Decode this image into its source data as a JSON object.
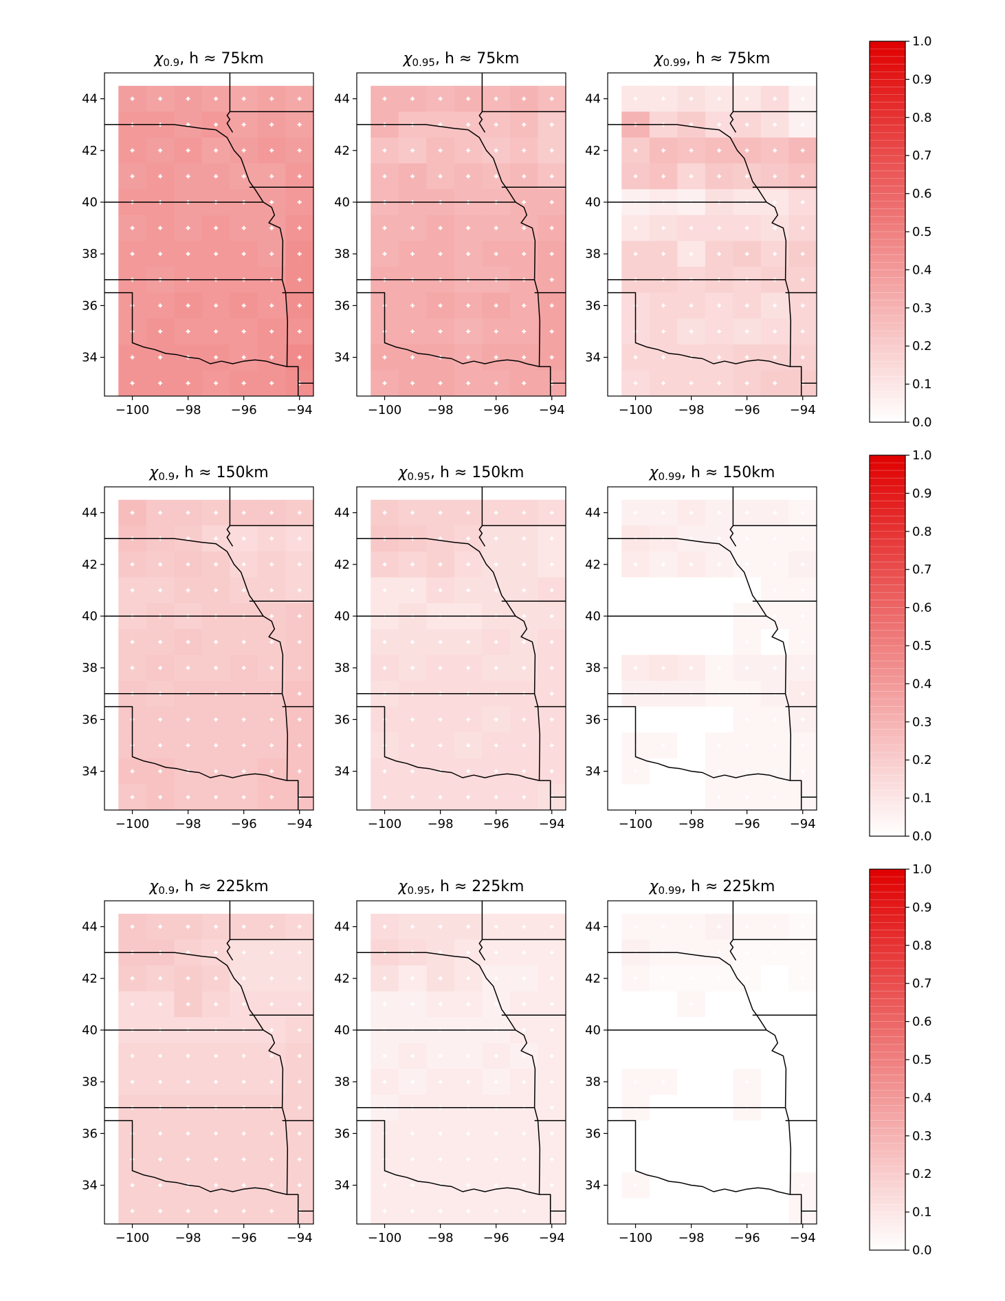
{
  "chart_data": {
    "type": "heatmap",
    "grid": {
      "lon_centers": [
        -100,
        -99,
        -98,
        -97,
        -96,
        -95,
        -94
      ],
      "lat_centers": [
        44,
        43,
        42,
        41,
        40,
        39,
        38,
        37,
        36,
        35,
        34,
        33
      ],
      "cell_size_deg": 1
    },
    "colorbar": {
      "cmap": "white-to-red",
      "color_min": "#ffffff",
      "color_max": "#e00000",
      "vmin": 0,
      "vmax": 1,
      "ticks": [
        "0.0",
        "0.1",
        "0.2",
        "0.3",
        "0.4",
        "0.5",
        "0.6",
        "0.7",
        "0.8",
        "0.9",
        "1.0"
      ]
    },
    "xlim": [
      -101,
      -93.5
    ],
    "ylim": [
      32.5,
      45
    ],
    "xticks": [
      "−100",
      "−98",
      "−96",
      "−94"
    ],
    "yticks": [
      "34",
      "36",
      "38",
      "40",
      "42",
      "44"
    ],
    "panels": [
      {
        "chi": "0.9",
        "h": "75km",
        "values": [
          [
            0.38,
            0.36,
            0.38,
            0.36,
            0.34,
            0.36,
            0.34
          ],
          [
            0.4,
            0.4,
            0.38,
            0.4,
            0.36,
            0.38,
            0.36
          ],
          [
            0.4,
            0.38,
            0.4,
            0.36,
            0.38,
            0.4,
            0.38
          ],
          [
            0.38,
            0.4,
            0.38,
            0.38,
            0.36,
            0.36,
            0.4
          ],
          [
            0.4,
            0.4,
            0.38,
            0.38,
            0.38,
            0.38,
            0.4
          ],
          [
            0.38,
            0.4,
            0.38,
            0.4,
            0.38,
            0.38,
            0.42
          ],
          [
            0.4,
            0.4,
            0.4,
            0.4,
            0.4,
            0.38,
            0.44
          ],
          [
            0.4,
            0.38,
            0.4,
            0.4,
            0.4,
            0.4,
            0.44
          ],
          [
            0.4,
            0.4,
            0.42,
            0.4,
            0.42,
            0.4,
            0.44
          ],
          [
            0.4,
            0.42,
            0.4,
            0.4,
            0.4,
            0.42,
            0.42
          ],
          [
            0.42,
            0.42,
            0.42,
            0.42,
            0.4,
            0.42,
            0.46
          ],
          [
            0.42,
            0.42,
            0.42,
            0.4,
            0.42,
            0.42,
            0.44
          ]
        ]
      },
      {
        "chi": "0.95",
        "h": "75km",
        "values": [
          [
            0.3,
            0.3,
            0.28,
            0.3,
            0.28,
            0.3,
            0.26
          ],
          [
            0.3,
            0.24,
            0.24,
            0.24,
            0.24,
            0.26,
            0.2
          ],
          [
            0.24,
            0.22,
            0.26,
            0.24,
            0.22,
            0.24,
            0.2
          ],
          [
            0.28,
            0.3,
            0.26,
            0.28,
            0.26,
            0.28,
            0.24
          ],
          [
            0.28,
            0.3,
            0.3,
            0.28,
            0.28,
            0.3,
            0.3
          ],
          [
            0.3,
            0.3,
            0.32,
            0.3,
            0.3,
            0.3,
            0.32
          ],
          [
            0.3,
            0.32,
            0.32,
            0.3,
            0.32,
            0.32,
            0.34
          ],
          [
            0.32,
            0.32,
            0.32,
            0.3,
            0.3,
            0.32,
            0.34
          ],
          [
            0.32,
            0.32,
            0.34,
            0.32,
            0.34,
            0.32,
            0.36
          ],
          [
            0.32,
            0.32,
            0.32,
            0.3,
            0.32,
            0.32,
            0.36
          ],
          [
            0.34,
            0.34,
            0.34,
            0.32,
            0.34,
            0.34,
            0.36
          ],
          [
            0.32,
            0.34,
            0.34,
            0.32,
            0.32,
            0.34,
            0.34
          ]
        ]
      },
      {
        "chi": "0.99",
        "h": "75km",
        "values": [
          [
            0.1,
            0.1,
            0.12,
            0.1,
            0.1,
            0.14,
            0.06
          ],
          [
            0.3,
            0.16,
            0.2,
            0.14,
            0.16,
            0.12,
            0.06
          ],
          [
            0.2,
            0.26,
            0.24,
            0.26,
            0.26,
            0.24,
            0.28
          ],
          [
            0.22,
            0.24,
            0.16,
            0.22,
            0.2,
            0.22,
            0.24
          ],
          [
            0.06,
            0.08,
            0.06,
            0.12,
            0.1,
            0.1,
            0.14
          ],
          [
            0.1,
            0.12,
            0.14,
            0.14,
            0.14,
            0.12,
            0.16
          ],
          [
            0.18,
            0.18,
            0.1,
            0.18,
            0.2,
            0.16,
            0.2
          ],
          [
            0.18,
            0.18,
            0.16,
            0.18,
            0.16,
            0.18,
            0.18
          ],
          [
            0.14,
            0.16,
            0.16,
            0.14,
            0.16,
            0.12,
            0.16
          ],
          [
            0.14,
            0.16,
            0.12,
            0.14,
            0.12,
            0.14,
            0.16
          ],
          [
            0.16,
            0.16,
            0.16,
            0.16,
            0.18,
            0.18,
            0.18
          ],
          [
            0.14,
            0.16,
            0.16,
            0.16,
            0.18,
            0.2,
            0.2
          ]
        ]
      },
      {
        "chi": "0.9",
        "h": "150km",
        "values": [
          [
            0.26,
            0.22,
            0.22,
            0.2,
            0.22,
            0.22,
            0.2
          ],
          [
            0.24,
            0.22,
            0.2,
            0.16,
            0.14,
            0.16,
            0.14
          ],
          [
            0.22,
            0.2,
            0.22,
            0.2,
            0.16,
            0.18,
            0.16
          ],
          [
            0.18,
            0.18,
            0.2,
            0.2,
            0.18,
            0.18,
            0.16
          ],
          [
            0.18,
            0.2,
            0.18,
            0.2,
            0.2,
            0.2,
            0.22
          ],
          [
            0.2,
            0.2,
            0.22,
            0.2,
            0.2,
            0.2,
            0.22
          ],
          [
            0.2,
            0.22,
            0.2,
            0.2,
            0.22,
            0.2,
            0.22
          ],
          [
            0.22,
            0.2,
            0.22,
            0.22,
            0.22,
            0.22,
            0.24
          ],
          [
            0.22,
            0.22,
            0.22,
            0.22,
            0.22,
            0.22,
            0.24
          ],
          [
            0.22,
            0.22,
            0.22,
            0.22,
            0.22,
            0.22,
            0.24
          ],
          [
            0.24,
            0.24,
            0.22,
            0.22,
            0.22,
            0.24,
            0.24
          ],
          [
            0.22,
            0.24,
            0.22,
            0.22,
            0.22,
            0.24,
            0.24
          ]
        ]
      },
      {
        "chi": "0.95",
        "h": "150km",
        "values": [
          [
            0.2,
            0.18,
            0.18,
            0.18,
            0.16,
            0.16,
            0.14
          ],
          [
            0.22,
            0.2,
            0.18,
            0.16,
            0.12,
            0.12,
            0.1
          ],
          [
            0.18,
            0.16,
            0.18,
            0.14,
            0.12,
            0.12,
            0.1
          ],
          [
            0.1,
            0.1,
            0.14,
            0.12,
            0.12,
            0.12,
            0.14
          ],
          [
            0.1,
            0.12,
            0.1,
            0.1,
            0.12,
            0.12,
            0.12
          ],
          [
            0.12,
            0.12,
            0.12,
            0.12,
            0.14,
            0.12,
            0.14
          ],
          [
            0.14,
            0.12,
            0.14,
            0.14,
            0.12,
            0.12,
            0.14
          ],
          [
            0.12,
            0.14,
            0.14,
            0.14,
            0.14,
            0.14,
            0.14
          ],
          [
            0.14,
            0.14,
            0.14,
            0.14,
            0.12,
            0.14,
            0.14
          ],
          [
            0.12,
            0.14,
            0.14,
            0.12,
            0.14,
            0.14,
            0.14
          ],
          [
            0.14,
            0.14,
            0.14,
            0.14,
            0.14,
            0.14,
            0.14
          ],
          [
            0.14,
            0.14,
            0.14,
            0.14,
            0.14,
            0.14,
            0.12
          ]
        ]
      },
      {
        "chi": "0.99",
        "h": "150km",
        "values": [
          [
            0.06,
            0.06,
            0.08,
            0.06,
            0.06,
            0.06,
            0.04
          ],
          [
            0.1,
            0.08,
            0.06,
            0.06,
            0.04,
            0.04,
            0.04
          ],
          [
            0.08,
            0.06,
            0.08,
            0.06,
            0.04,
            0.04,
            0.06
          ],
          [
            0.0,
            0.0,
            0.0,
            0.0,
            0.0,
            0.04,
            0.04
          ],
          [
            0.0,
            0.0,
            0.0,
            0.0,
            0.04,
            0.04,
            0.04
          ],
          [
            0.0,
            0.0,
            0.0,
            0.0,
            0.04,
            0.0,
            0.04
          ],
          [
            0.08,
            0.1,
            0.08,
            0.04,
            0.06,
            0.06,
            0.06
          ],
          [
            0.06,
            0.06,
            0.06,
            0.04,
            0.04,
            0.06,
            0.08
          ],
          [
            0.0,
            0.0,
            0.0,
            0.0,
            0.04,
            0.04,
            0.06
          ],
          [
            0.04,
            0.04,
            0.0,
            0.04,
            0.04,
            0.04,
            0.04
          ],
          [
            0.04,
            0.0,
            0.0,
            0.04,
            0.04,
            0.04,
            0.04
          ],
          [
            0.0,
            0.0,
            0.0,
            0.04,
            0.04,
            0.04,
            0.04
          ]
        ]
      },
      {
        "chi": "0.9",
        "h": "225km",
        "values": [
          [
            0.22,
            0.2,
            0.2,
            0.18,
            0.18,
            0.18,
            0.16
          ],
          [
            0.22,
            0.22,
            0.18,
            0.16,
            0.12,
            0.12,
            0.12
          ],
          [
            0.2,
            0.18,
            0.2,
            0.18,
            0.12,
            0.12,
            0.12
          ],
          [
            0.14,
            0.14,
            0.2,
            0.16,
            0.14,
            0.14,
            0.14
          ],
          [
            0.14,
            0.14,
            0.14,
            0.14,
            0.14,
            0.14,
            0.16
          ],
          [
            0.16,
            0.16,
            0.16,
            0.16,
            0.16,
            0.16,
            0.18
          ],
          [
            0.16,
            0.16,
            0.16,
            0.16,
            0.16,
            0.16,
            0.18
          ],
          [
            0.18,
            0.18,
            0.18,
            0.18,
            0.18,
            0.18,
            0.18
          ],
          [
            0.18,
            0.18,
            0.18,
            0.18,
            0.18,
            0.18,
            0.18
          ],
          [
            0.18,
            0.18,
            0.18,
            0.18,
            0.18,
            0.18,
            0.18
          ],
          [
            0.18,
            0.18,
            0.18,
            0.18,
            0.18,
            0.18,
            0.18
          ],
          [
            0.18,
            0.18,
            0.18,
            0.18,
            0.18,
            0.18,
            0.18
          ]
        ]
      },
      {
        "chi": "0.95",
        "h": "225km",
        "values": [
          [
            0.14,
            0.12,
            0.12,
            0.12,
            0.1,
            0.1,
            0.1
          ],
          [
            0.16,
            0.14,
            0.12,
            0.1,
            0.08,
            0.08,
            0.08
          ],
          [
            0.12,
            0.08,
            0.12,
            0.1,
            0.06,
            0.06,
            0.08
          ],
          [
            0.06,
            0.06,
            0.08,
            0.08,
            0.06,
            0.08,
            0.08
          ],
          [
            0.06,
            0.06,
            0.06,
            0.06,
            0.06,
            0.08,
            0.08
          ],
          [
            0.06,
            0.08,
            0.06,
            0.06,
            0.08,
            0.06,
            0.08
          ],
          [
            0.08,
            0.06,
            0.08,
            0.08,
            0.06,
            0.08,
            0.08
          ],
          [
            0.06,
            0.08,
            0.08,
            0.08,
            0.08,
            0.08,
            0.08
          ],
          [
            0.08,
            0.08,
            0.08,
            0.08,
            0.08,
            0.08,
            0.08
          ],
          [
            0.08,
            0.08,
            0.08,
            0.08,
            0.08,
            0.08,
            0.08
          ],
          [
            0.08,
            0.08,
            0.08,
            0.08,
            0.08,
            0.08,
            0.08
          ],
          [
            0.08,
            0.08,
            0.08,
            0.08,
            0.08,
            0.08,
            0.08
          ]
        ]
      },
      {
        "chi": "0.99",
        "h": "225km",
        "values": [
          [
            0.04,
            0.04,
            0.04,
            0.06,
            0.04,
            0.04,
            0.02
          ],
          [
            0.06,
            0.04,
            0.04,
            0.04,
            0.02,
            0.02,
            0.02
          ],
          [
            0.04,
            0.02,
            0.02,
            0.02,
            0.02,
            0.0,
            0.02
          ],
          [
            0.0,
            0.0,
            0.04,
            0.0,
            0.0,
            0.0,
            0.0
          ],
          [
            0.0,
            0.0,
            0.0,
            0.0,
            0.0,
            0.0,
            0.0
          ],
          [
            0.0,
            0.0,
            0.0,
            0.0,
            0.0,
            0.0,
            0.0
          ],
          [
            0.04,
            0.04,
            0.0,
            0.0,
            0.04,
            0.0,
            0.0
          ],
          [
            0.04,
            0.0,
            0.0,
            0.0,
            0.04,
            0.0,
            0.0
          ],
          [
            0.0,
            0.0,
            0.0,
            0.0,
            0.0,
            0.0,
            0.0
          ],
          [
            0.0,
            0.0,
            0.0,
            0.0,
            0.0,
            0.0,
            0.0
          ],
          [
            0.04,
            0.0,
            0.0,
            0.0,
            0.0,
            0.0,
            0.04
          ],
          [
            0.0,
            0.0,
            0.0,
            0.0,
            0.0,
            0.0,
            0.04
          ]
        ]
      }
    ],
    "station_markers": "white-cross-at-each-cell-center",
    "overlay": "US state boundaries (Nebraska, Kansas, Oklahoma region)"
  }
}
